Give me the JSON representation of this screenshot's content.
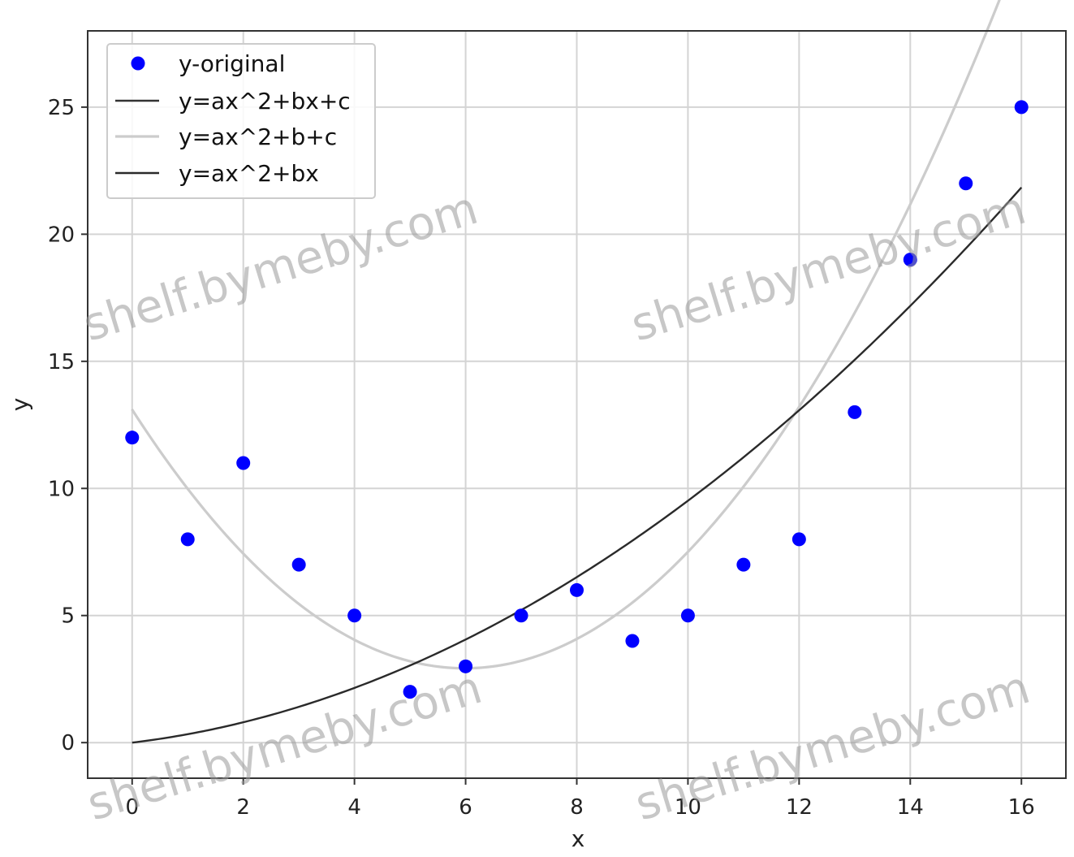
{
  "chart_data": {
    "type": "scatter",
    "xlabel": "x",
    "ylabel": "y",
    "xlim": [
      -0.8,
      16.8
    ],
    "ylim": [
      -1.4,
      28.0
    ],
    "xticks": [
      0,
      2,
      4,
      6,
      8,
      10,
      12,
      14,
      16
    ],
    "yticks": [
      0,
      5,
      10,
      15,
      20,
      25
    ],
    "grid": true,
    "legend_position": "top-left",
    "points": {
      "name": "y-original",
      "color": "#0000ff",
      "x": [
        0,
        1,
        2,
        3,
        4,
        5,
        6,
        7,
        8,
        9,
        10,
        11,
        12,
        13,
        14,
        15,
        16
      ],
      "y": [
        12,
        8,
        11,
        7,
        5,
        2,
        3,
        5,
        6,
        4,
        5,
        7,
        8,
        13,
        19,
        22,
        25
      ]
    },
    "series": [
      {
        "name": "y=ax^2+bx+c",
        "color": "#333333",
        "a": 0.2841,
        "b": -3.4005,
        "c": 13.1
      },
      {
        "name": "y=ax^2+b+c",
        "color": "#cccccc",
        "a": 0.2841,
        "b": -3.4005,
        "c": 13.1
      },
      {
        "name": "y=ax^2+bx",
        "color": "#2a2a2a",
        "a": 0.0689,
        "b": 0.2626,
        "c": 0
      }
    ]
  },
  "watermark": "shelf.bymeby.com"
}
